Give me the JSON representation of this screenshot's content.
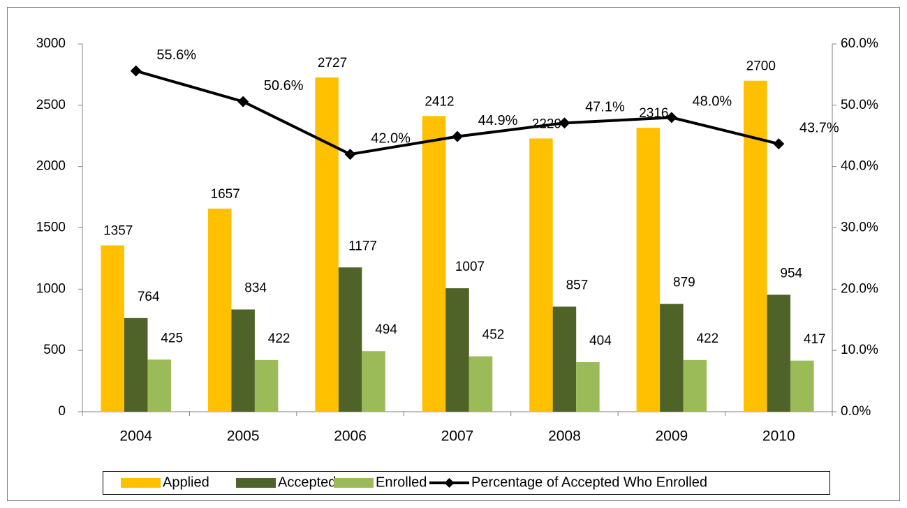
{
  "chart_data": {
    "type": "bar_line",
    "categories": [
      "2004",
      "2005",
      "2006",
      "2007",
      "2008",
      "2009",
      "2010"
    ],
    "series": [
      {
        "name": "Applied",
        "color": "#FFC000",
        "values": [
          1357,
          1657,
          2727,
          2412,
          2229,
          2316,
          2700
        ]
      },
      {
        "name": "Accepted",
        "color": "#4F6228",
        "values": [
          764,
          834,
          1177,
          1007,
          857,
          879,
          954
        ]
      },
      {
        "name": "Enrolled",
        "color": "#9BBB59",
        "values": [
          425,
          422,
          494,
          452,
          404,
          422,
          417
        ]
      },
      {
        "name": "Percentage of Accepted Who Enrolled",
        "color": "#000000",
        "axis": "y2",
        "type": "line",
        "values": [
          55.6,
          50.6,
          42.0,
          44.9,
          47.1,
          48.0,
          43.7
        ],
        "value_labels": [
          "55.6%",
          "50.6%",
          "42.0%",
          "44.9%",
          "47.1%",
          "48.0%",
          "43.7%"
        ]
      }
    ],
    "ylim": [
      0,
      3000
    ],
    "yticks": [
      0,
      500,
      1000,
      1500,
      2000,
      2500,
      3000
    ],
    "y2lim": [
      0,
      60
    ],
    "y2ticks": [
      {
        "value": 0,
        "label": "0.0%"
      },
      {
        "value": 10,
        "label": "10.0%"
      },
      {
        "value": 20,
        "label": "20.0%"
      },
      {
        "value": 30,
        "label": "30.0%"
      },
      {
        "value": 40,
        "label": "40.0%"
      },
      {
        "value": 50,
        "label": "50.0%"
      },
      {
        "value": 60,
        "label": "60.0%"
      }
    ],
    "legend": "bottom"
  }
}
